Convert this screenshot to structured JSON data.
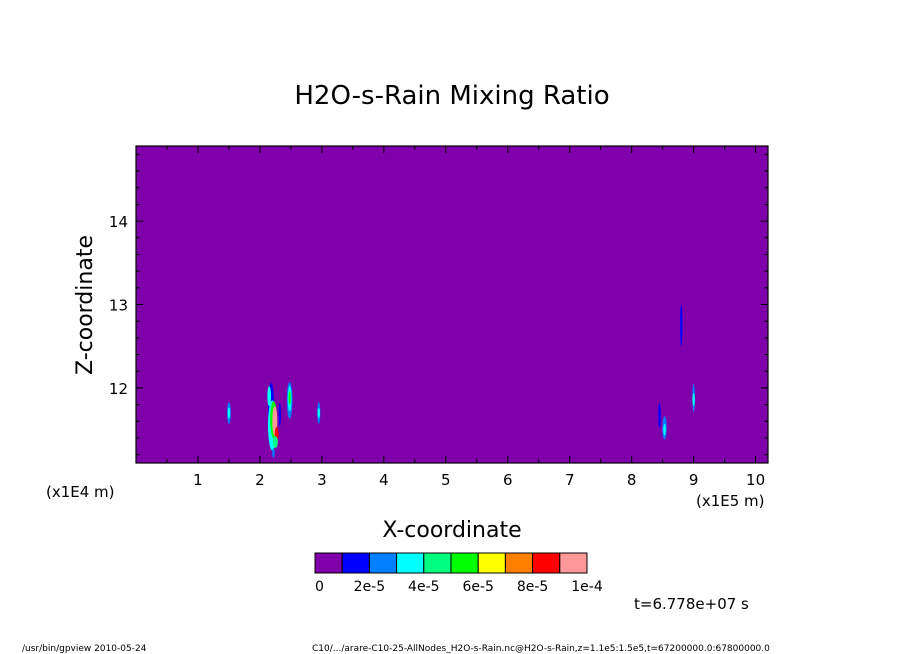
{
  "chart_data": {
    "type": "heatmap",
    "title": "H2O-s-Rain Mixing Ratio",
    "xlabel": "X-coordinate",
    "ylabel": "Z-coordinate",
    "x_unit_label": "(x1E5 m)",
    "y_unit_label": "(x1E4 m)",
    "xlim": [
      0.0,
      10.2
    ],
    "ylim": [
      11.1,
      14.9
    ],
    "x_ticks": [
      1,
      2,
      3,
      4,
      5,
      6,
      7,
      8,
      9,
      10
    ],
    "x_tick_labels": [
      "1",
      "2",
      "3",
      "4",
      "5",
      "6",
      "7",
      "8",
      "9",
      "10"
    ],
    "y_ticks": [
      12,
      13,
      14
    ],
    "y_tick_labels": [
      "12",
      "13",
      "14"
    ],
    "background_color": "#7f00aa",
    "colorbar": {
      "colors": [
        "#7f00aa",
        "#0000ff",
        "#0080ff",
        "#00ffff",
        "#00ff80",
        "#00ff00",
        "#ffff00",
        "#ff8000",
        "#ff0000",
        "#ff9999"
      ],
      "labels": [
        "0",
        "2e-5",
        "4e-5",
        "6e-5",
        "8e-5",
        "1e-4"
      ]
    },
    "features": [
      {
        "x": 1.5,
        "z": 11.7,
        "dx": 0.03,
        "dz": 0.13,
        "level": 2
      },
      {
        "x": 1.5,
        "z": 11.7,
        "dx": 0.012,
        "dz": 0.07,
        "level": 3
      },
      {
        "x": 2.18,
        "z": 11.78,
        "dx": 0.05,
        "dz": 0.28,
        "level": 1
      },
      {
        "x": 2.15,
        "z": 11.9,
        "dx": 0.03,
        "dz": 0.12,
        "level": 3
      },
      {
        "x": 2.2,
        "z": 11.55,
        "dx": 0.07,
        "dz": 0.3,
        "level": 3
      },
      {
        "x": 2.22,
        "z": 11.62,
        "dx": 0.055,
        "dz": 0.22,
        "level": 5
      },
      {
        "x": 2.24,
        "z": 11.6,
        "dx": 0.04,
        "dz": 0.18,
        "level": 9
      },
      {
        "x": 2.27,
        "z": 11.45,
        "dx": 0.03,
        "dz": 0.08,
        "level": 8
      },
      {
        "x": 2.25,
        "z": 11.35,
        "dx": 0.04,
        "dz": 0.07,
        "level": 4
      },
      {
        "x": 2.22,
        "z": 11.22,
        "dx": 0.02,
        "dz": 0.06,
        "level": 2
      },
      {
        "x": 2.32,
        "z": 11.68,
        "dx": 0.015,
        "dz": 0.14,
        "level": 1
      },
      {
        "x": 2.48,
        "z": 11.85,
        "dx": 0.045,
        "dz": 0.22,
        "level": 2
      },
      {
        "x": 2.48,
        "z": 11.87,
        "dx": 0.03,
        "dz": 0.15,
        "level": 3
      },
      {
        "x": 2.48,
        "z": 11.88,
        "dx": 0.015,
        "dz": 0.08,
        "level": 5
      },
      {
        "x": 2.95,
        "z": 11.7,
        "dx": 0.025,
        "dz": 0.13,
        "level": 2
      },
      {
        "x": 2.95,
        "z": 11.7,
        "dx": 0.01,
        "dz": 0.06,
        "level": 3
      },
      {
        "x": 8.45,
        "z": 11.67,
        "dx": 0.02,
        "dz": 0.15,
        "level": 1
      },
      {
        "x": 8.53,
        "z": 11.52,
        "dx": 0.035,
        "dz": 0.14,
        "level": 2
      },
      {
        "x": 8.53,
        "z": 11.5,
        "dx": 0.015,
        "dz": 0.07,
        "level": 3
      },
      {
        "x": 8.8,
        "z": 12.75,
        "dx": 0.006,
        "dz": 0.25,
        "level": 1
      },
      {
        "x": 9.0,
        "z": 11.88,
        "dx": 0.02,
        "dz": 0.17,
        "level": 2
      },
      {
        "x": 9.0,
        "z": 11.86,
        "dx": 0.008,
        "dz": 0.08,
        "level": 3
      }
    ]
  },
  "annotations": {
    "time": "t=6.778e+07 s",
    "footer_left": "/usr/bin/gpview  2010-05-24",
    "footer_right": "C10/.../arare-C10-25-AllNodes_H2O-s-Rain.nc@H2O-s-Rain,z=1.1e5:1.5e5,t=67200000.0:67800000.0"
  }
}
